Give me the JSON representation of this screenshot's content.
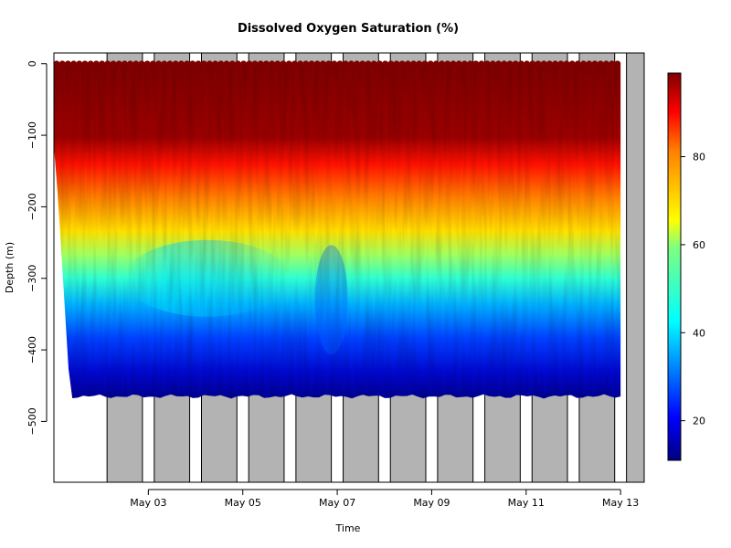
{
  "chart_data": {
    "type": "heatmap",
    "title": "Dissolved Oxygen Saturation (%)",
    "xlabel": "Time",
    "ylabel": "Depth (m)",
    "x_axis": {
      "unit": "date",
      "range": [
        "2024-05-01T00:00",
        "2024-05-13T12:00"
      ],
      "tick_labels": [
        "May 03",
        "May 05",
        "May 07",
        "May 09",
        "May 11",
        "May 13"
      ],
      "tick_dates": [
        "2024-05-03",
        "2024-05-05",
        "2024-05-07",
        "2024-05-09",
        "2024-05-11",
        "2024-05-13"
      ]
    },
    "y_axis": {
      "range": [
        -585,
        15
      ],
      "ticks": [
        0,
        -100,
        -200,
        -300,
        -400,
        -500
      ],
      "tick_labels": [
        "0",
        "−100",
        "−200",
        "−300",
        "−400",
        "−500"
      ]
    },
    "night_shading": [
      [
        "2024-05-02T03:00",
        "2024-05-02T21:00"
      ],
      [
        "2024-05-03T03:00",
        "2024-05-03T21:00"
      ],
      [
        "2024-05-04T03:00",
        "2024-05-04T21:00"
      ],
      [
        "2024-05-05T03:00",
        "2024-05-05T21:00"
      ],
      [
        "2024-05-06T03:00",
        "2024-05-06T21:00"
      ],
      [
        "2024-05-07T03:00",
        "2024-05-07T21:00"
      ],
      [
        "2024-05-08T03:00",
        "2024-05-08T21:00"
      ],
      [
        "2024-05-09T03:00",
        "2024-05-09T21:00"
      ],
      [
        "2024-05-10T03:00",
        "2024-05-10T21:00"
      ],
      [
        "2024-05-11T03:00",
        "2024-05-11T21:00"
      ],
      [
        "2024-05-12T03:00",
        "2024-05-12T21:00"
      ],
      [
        "2024-05-13T03:00",
        "2024-05-13T12:00"
      ]
    ],
    "data_extent": {
      "x_range": [
        "2024-05-01T00:00",
        "2024-05-13T00:00"
      ],
      "depth_range": [
        0,
        -465
      ]
    },
    "typical_profile": [
      {
        "depth": 0,
        "value": 95
      },
      {
        "depth": -100,
        "value": 90
      },
      {
        "depth": -170,
        "value": 82
      },
      {
        "depth": -230,
        "value": 68
      },
      {
        "depth": -280,
        "value": 57
      },
      {
        "depth": -330,
        "value": 42
      },
      {
        "depth": -380,
        "value": 33
      },
      {
        "depth": -420,
        "value": 26
      },
      {
        "depth": -460,
        "value": 20
      }
    ],
    "colorbar": {
      "min": 11,
      "max": 99,
      "ticks": [
        20,
        40,
        60,
        80
      ],
      "tick_labels": [
        "20",
        "40",
        "60",
        "80"
      ],
      "colormap": "jet",
      "stops": [
        "#00007f",
        "#0000ff",
        "#007fff",
        "#00ffff",
        "#7fff7f",
        "#ffff00",
        "#ff7f00",
        "#ff0000",
        "#7f0000"
      ]
    },
    "colors": {
      "night_fill": "#b3b3b3",
      "axis": "#000000",
      "background": "#ffffff"
    }
  }
}
